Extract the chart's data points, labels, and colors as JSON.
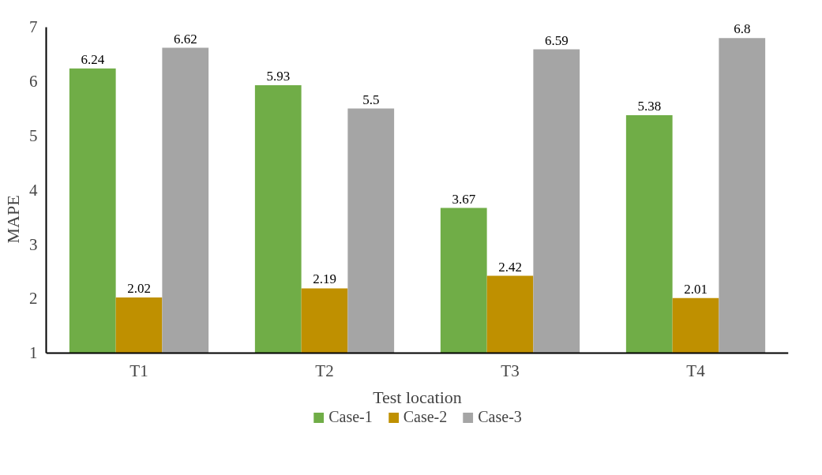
{
  "chart_data": {
    "type": "bar",
    "xlabel": "Test location",
    "ylabel": "MAPE",
    "categories": [
      "T1",
      "T2",
      "T3",
      "T4"
    ],
    "series": [
      {
        "name": "Case-1",
        "color": "#70ad47",
        "values": [
          6.24,
          5.93,
          3.67,
          5.38
        ]
      },
      {
        "name": "Case-2",
        "color": "#bf9000",
        "values": [
          2.02,
          2.19,
          2.42,
          2.01
        ]
      },
      {
        "name": "Case-3",
        "color": "#a5a5a5",
        "values": [
          6.62,
          5.5,
          6.59,
          6.8
        ]
      }
    ],
    "ylim": [
      1,
      7
    ],
    "yticks": [
      1,
      2,
      3,
      4,
      5,
      6,
      7
    ],
    "grid": false,
    "legend": "bottom",
    "data_labels": true
  }
}
